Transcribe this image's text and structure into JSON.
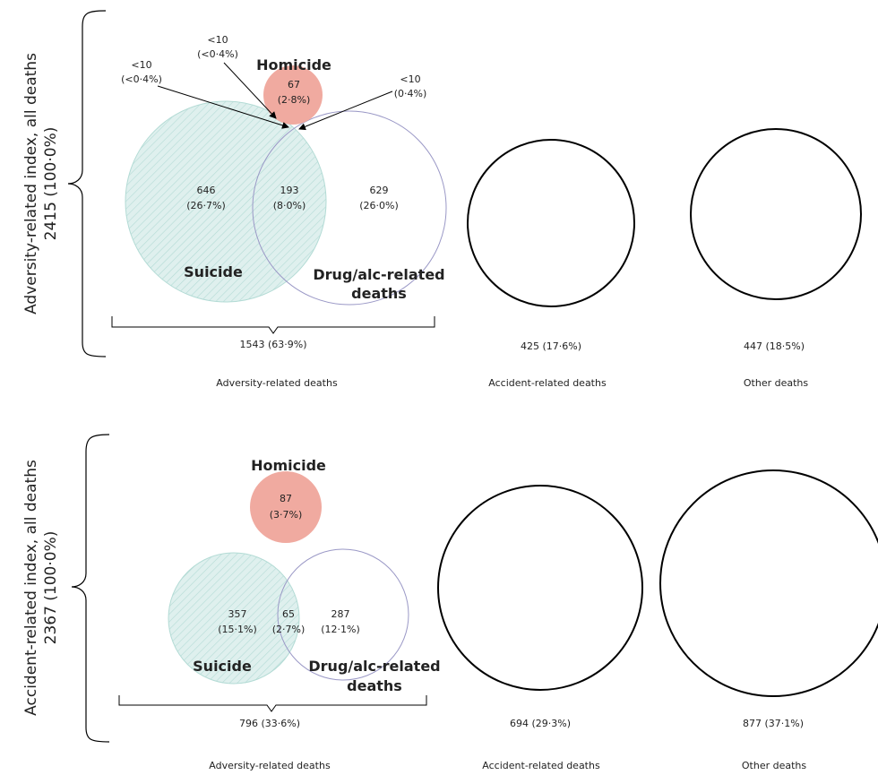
{
  "colors": {
    "suicide_fill": "#dff0ee",
    "suicide_hatch": "#9fcfc8",
    "homicide_fill": "#f0aaa0",
    "drug_stroke": "#9a98c6",
    "outline": "#000000"
  },
  "panels": [
    {
      "side_label_line1": "Adversity-related index, all deaths",
      "side_label_line2": "2415 (100·0%)",
      "homicide_title": "Homicide",
      "homicide_value": "67",
      "homicide_pct": "(2·8%)",
      "suicide_title": "Suicide",
      "suicide_value": "646",
      "suicide_pct": "(26·7%)",
      "overlap_value": "193",
      "overlap_pct": "(8·0%)",
      "drug_title_line1": "Drug/alc-related",
      "drug_title_line2": "deaths",
      "drug_value": "629",
      "drug_pct": "(26·0%)",
      "small_left_value": "<10",
      "small_left_pct": "(<0·4%)",
      "small_top_value": "<10",
      "small_top_pct": "(<0·4%)",
      "small_right_value": "<10",
      "small_right_pct": "(0·4%)",
      "adversity_total": "1543 (63·9%)",
      "accident_total": "425 (17·6%)",
      "other_total": "447 (18·5%)",
      "adversity_caption": "Adversity-related deaths",
      "accident_caption": "Accident-related deaths",
      "other_caption": "Other deaths"
    },
    {
      "side_label_line1": "Accident-related index, all deaths",
      "side_label_line2": "2367 (100·0%)",
      "homicide_title": "Homicide",
      "homicide_value": "87",
      "homicide_pct": "(3·7%)",
      "suicide_title": "Suicide",
      "suicide_value": "357",
      "suicide_pct": "(15·1%)",
      "overlap_value": "65",
      "overlap_pct": "(2·7%)",
      "drug_title_line1": "Drug/alc-related",
      "drug_title_line2": "deaths",
      "drug_value": "287",
      "drug_pct": "(12·1%)",
      "adversity_total": "796 (33·6%)",
      "accident_total": "694 (29·3%)",
      "other_total": "877 (37·1%)",
      "adversity_caption": "Adversity-related deaths",
      "accident_caption": "Accident-related deaths",
      "other_caption": "Other deaths"
    }
  ]
}
